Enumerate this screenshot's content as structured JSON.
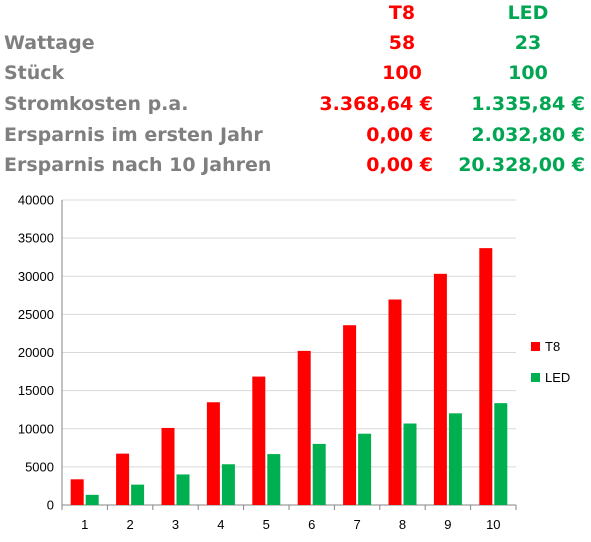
{
  "table": {
    "headers": {
      "t8": "T8",
      "led": "LED"
    },
    "rows": [
      {
        "label": "Wattage",
        "t8": "58",
        "led": "23"
      },
      {
        "label": "Stück",
        "t8": "100",
        "led": "100"
      },
      {
        "label": "Stromkosten p.a.",
        "t8": "3.368,64 €",
        "led": "1.335,84 €"
      },
      {
        "label": "Ersparnis im ersten Jahr",
        "t8": "0,00 €",
        "led": "2.032,80 €"
      },
      {
        "label": "Ersparnis nach 10 Jahren",
        "t8": "0,00 €",
        "led": "20.328,00 €"
      }
    ]
  },
  "colors": {
    "t8": "#ff0000",
    "led": "#00b050",
    "label": "#7f7f7f"
  },
  "chart_data": {
    "type": "bar",
    "categories": [
      "1",
      "2",
      "3",
      "4",
      "5",
      "6",
      "7",
      "8",
      "9",
      "10"
    ],
    "series": [
      {
        "name": "T8",
        "color": "#ff0000",
        "values": [
          3369,
          6737,
          10106,
          13475,
          16843,
          20212,
          23580,
          26949,
          30318,
          33686
        ]
      },
      {
        "name": "LED",
        "color": "#00b050",
        "values": [
          1336,
          2672,
          4008,
          5343,
          6679,
          8015,
          9351,
          10687,
          12023,
          13358
        ]
      }
    ],
    "ylim": [
      0,
      40000
    ],
    "yticks": [
      "0",
      "5000",
      "10000",
      "15000",
      "20000",
      "25000",
      "30000",
      "35000",
      "40000"
    ],
    "grid": true,
    "legend": "right"
  }
}
